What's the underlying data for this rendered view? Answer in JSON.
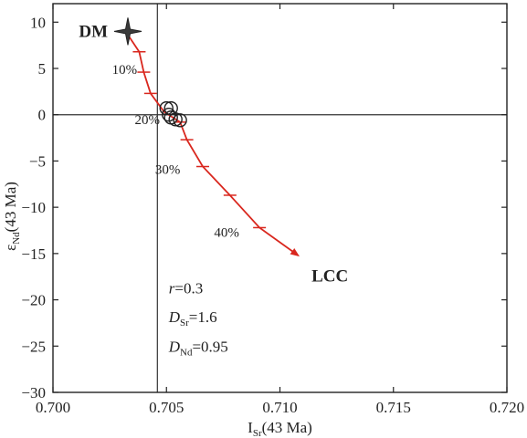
{
  "chart_data": {
    "type": "line",
    "x_axis": {
      "label_main": "I",
      "label_sub": "Sr",
      "label_suffix": "(43 Ma)",
      "range": [
        0.7,
        0.72
      ],
      "ticks": [
        0.7,
        0.705,
        0.71,
        0.715,
        0.72
      ],
      "tick_labels": [
        "0.700",
        "0.705",
        "0.710",
        "0.715",
        "0.720"
      ]
    },
    "y_axis": {
      "label_main": "ε",
      "label_sub": "Nd",
      "label_suffix": "(43 Ma)",
      "range": [
        -30,
        12
      ],
      "ticks": [
        -30,
        -25,
        -20,
        -15,
        -10,
        -5,
        0,
        5,
        10
      ],
      "tick_labels": [
        "−30",
        "−25",
        "−20",
        "−15",
        "−10",
        "−5",
        "0",
        "5",
        "10"
      ]
    },
    "reference_lines": {
      "vertical_x": 0.7046,
      "horizontal_y": 0
    },
    "mixing_curve": {
      "color": "#d9271e",
      "points": [
        {
          "x": 0.7032,
          "y": 9.0
        },
        {
          "x": 0.7038,
          "y": 6.8
        },
        {
          "x": 0.704,
          "y": 4.6
        },
        {
          "x": 0.7043,
          "y": 2.3
        },
        {
          "x": 0.7049,
          "y": 0.3
        },
        {
          "x": 0.7056,
          "y": -0.8
        },
        {
          "x": 0.7059,
          "y": -2.7
        },
        {
          "x": 0.7066,
          "y": -5.6
        },
        {
          "x": 0.7078,
          "y": -8.7
        },
        {
          "x": 0.7091,
          "y": -12.2
        },
        {
          "x": 0.7108,
          "y": -15.2
        }
      ],
      "tick_marks": [
        {
          "x": 0.7038,
          "y": 6.8
        },
        {
          "x": 0.704,
          "y": 4.6
        },
        {
          "x": 0.7043,
          "y": 2.3
        },
        {
          "x": 0.7056,
          "y": -0.8
        },
        {
          "x": 0.7059,
          "y": -2.7
        },
        {
          "x": 0.7066,
          "y": -5.6
        },
        {
          "x": 0.7078,
          "y": -8.7
        },
        {
          "x": 0.7091,
          "y": -12.2
        }
      ]
    },
    "percent_labels": [
      {
        "text": "10%",
        "x": 0.7026,
        "y": 4.4
      },
      {
        "text": "20%",
        "x": 0.7036,
        "y": -1.0
      },
      {
        "text": "30%",
        "x": 0.7045,
        "y": -6.4
      },
      {
        "text": "40%",
        "x": 0.7071,
        "y": -13.2
      }
    ],
    "samples": [
      {
        "x": 0.705,
        "y": 0.7
      },
      {
        "x": 0.7052,
        "y": 0.7
      },
      {
        "x": 0.7051,
        "y": 0.0
      },
      {
        "x": 0.7052,
        "y": -0.3
      },
      {
        "x": 0.7054,
        "y": -0.5
      },
      {
        "x": 0.7056,
        "y": -0.6
      }
    ],
    "endmembers": [
      {
        "name": "DM",
        "x": 0.7033,
        "y": 9.0
      },
      {
        "name": "LCC",
        "x": 0.7122,
        "y": -18.0
      }
    ],
    "parameters": [
      {
        "symbol": "r",
        "sub": "",
        "value": "=0.3"
      },
      {
        "symbol": "D",
        "sub": "Sr",
        "value": "=1.6"
      },
      {
        "symbol": "D",
        "sub": "Nd",
        "value": "=0.95"
      }
    ]
  }
}
